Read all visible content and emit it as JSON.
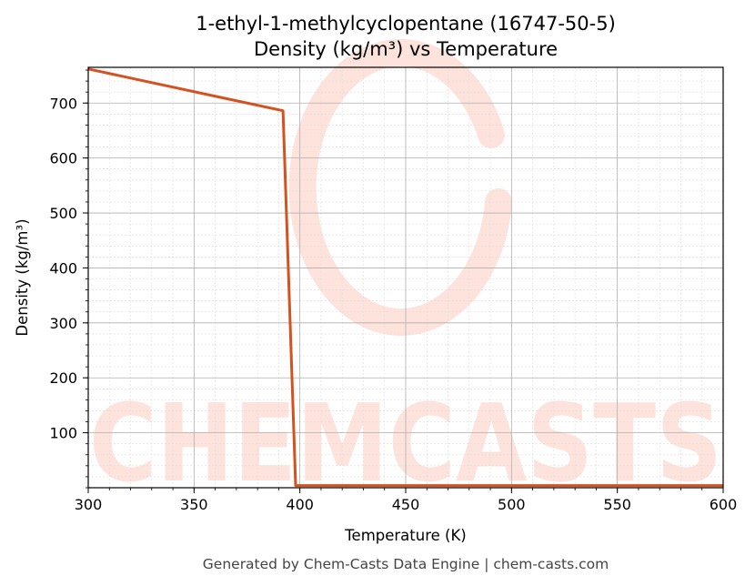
{
  "chart_data": {
    "type": "line",
    "title": "1-ethyl-1-methylcyclopentane (16747-50-5)",
    "subtitle": "Density (kg/m³) vs Temperature",
    "xlabel": "Temperature (K)",
    "ylabel": "Density (kg/m³)",
    "xlim": [
      300,
      600
    ],
    "ylim": [
      0,
      765
    ],
    "xticks": [
      300,
      350,
      400,
      450,
      500,
      550,
      600
    ],
    "yticks": [
      100,
      200,
      300,
      400,
      500,
      600,
      700
    ],
    "grid": true,
    "line_color": "#d4521f",
    "series": [
      {
        "x": [
          300,
          392,
          398,
          600
        ],
        "y": [
          762,
          686,
          4,
          4
        ]
      }
    ]
  },
  "footer": "Generated by Chem-Casts Data Engine | chem-casts.com",
  "watermark": {
    "text": "CHEMCASTS",
    "color": "#fde3dc"
  }
}
